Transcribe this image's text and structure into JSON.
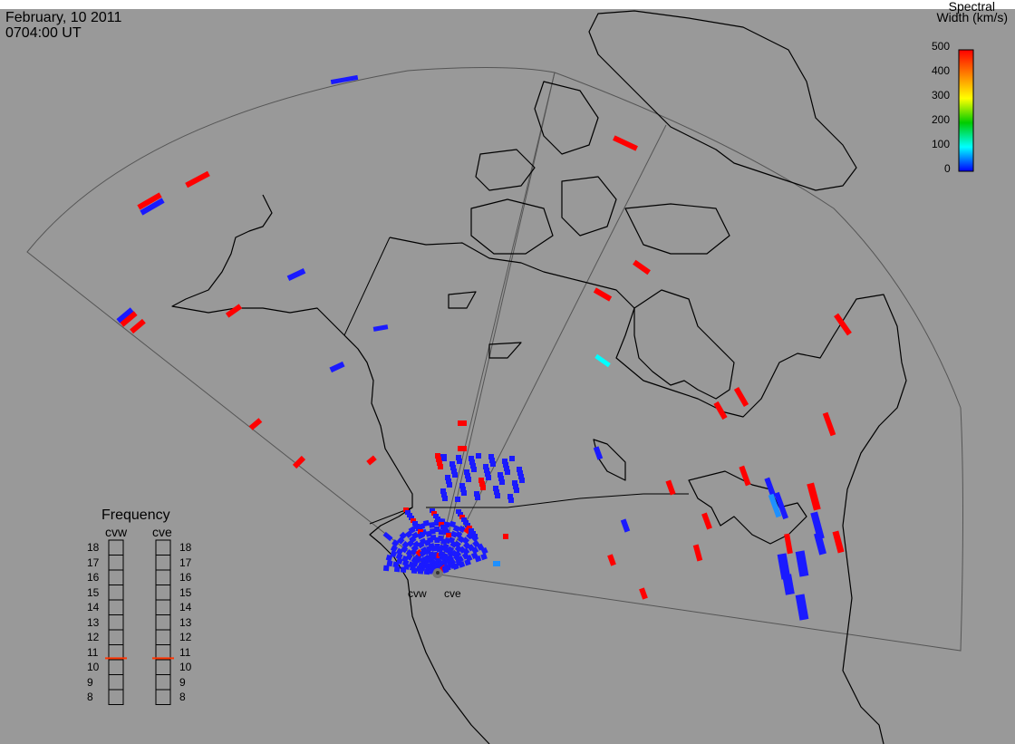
{
  "header": {
    "date": "February, 10 2011",
    "time": "0704:00 UT"
  },
  "colorbar": {
    "title_line1": "Spectral",
    "title_line2": "Width (km/s)",
    "ticks": [
      "500",
      "400",
      "300",
      "200",
      "100",
      "0"
    ],
    "colors": [
      "#ff0000",
      "#ff7f00",
      "#ffff00",
      "#00cc00",
      "#00ffff",
      "#0000ff"
    ]
  },
  "frequency": {
    "title": "Frequency",
    "radars": [
      "cvw",
      "cve"
    ],
    "ticks": [
      "18",
      "17",
      "16",
      "15",
      "14",
      "13",
      "12",
      "11",
      "10",
      "9",
      "8"
    ],
    "current_mhz": {
      "cvw": 10.6,
      "cve": 10.6
    },
    "marker_color": "#ff3300"
  },
  "sites": {
    "west": "cvw",
    "east": "cve"
  },
  "colors": {
    "background": "#999999",
    "top_band": "#ffffff",
    "coast": "#000000",
    "fov": "#555555",
    "echo_red": "#ff0000",
    "echo_blue": "#1a1aff",
    "echo_cyan": "#00ffff",
    "echo_lightblue": "#1e90ff"
  },
  "chart_data": {
    "type": "map",
    "projection": "polar stereographic, North America",
    "echo_counts_visible": "many"
  }
}
